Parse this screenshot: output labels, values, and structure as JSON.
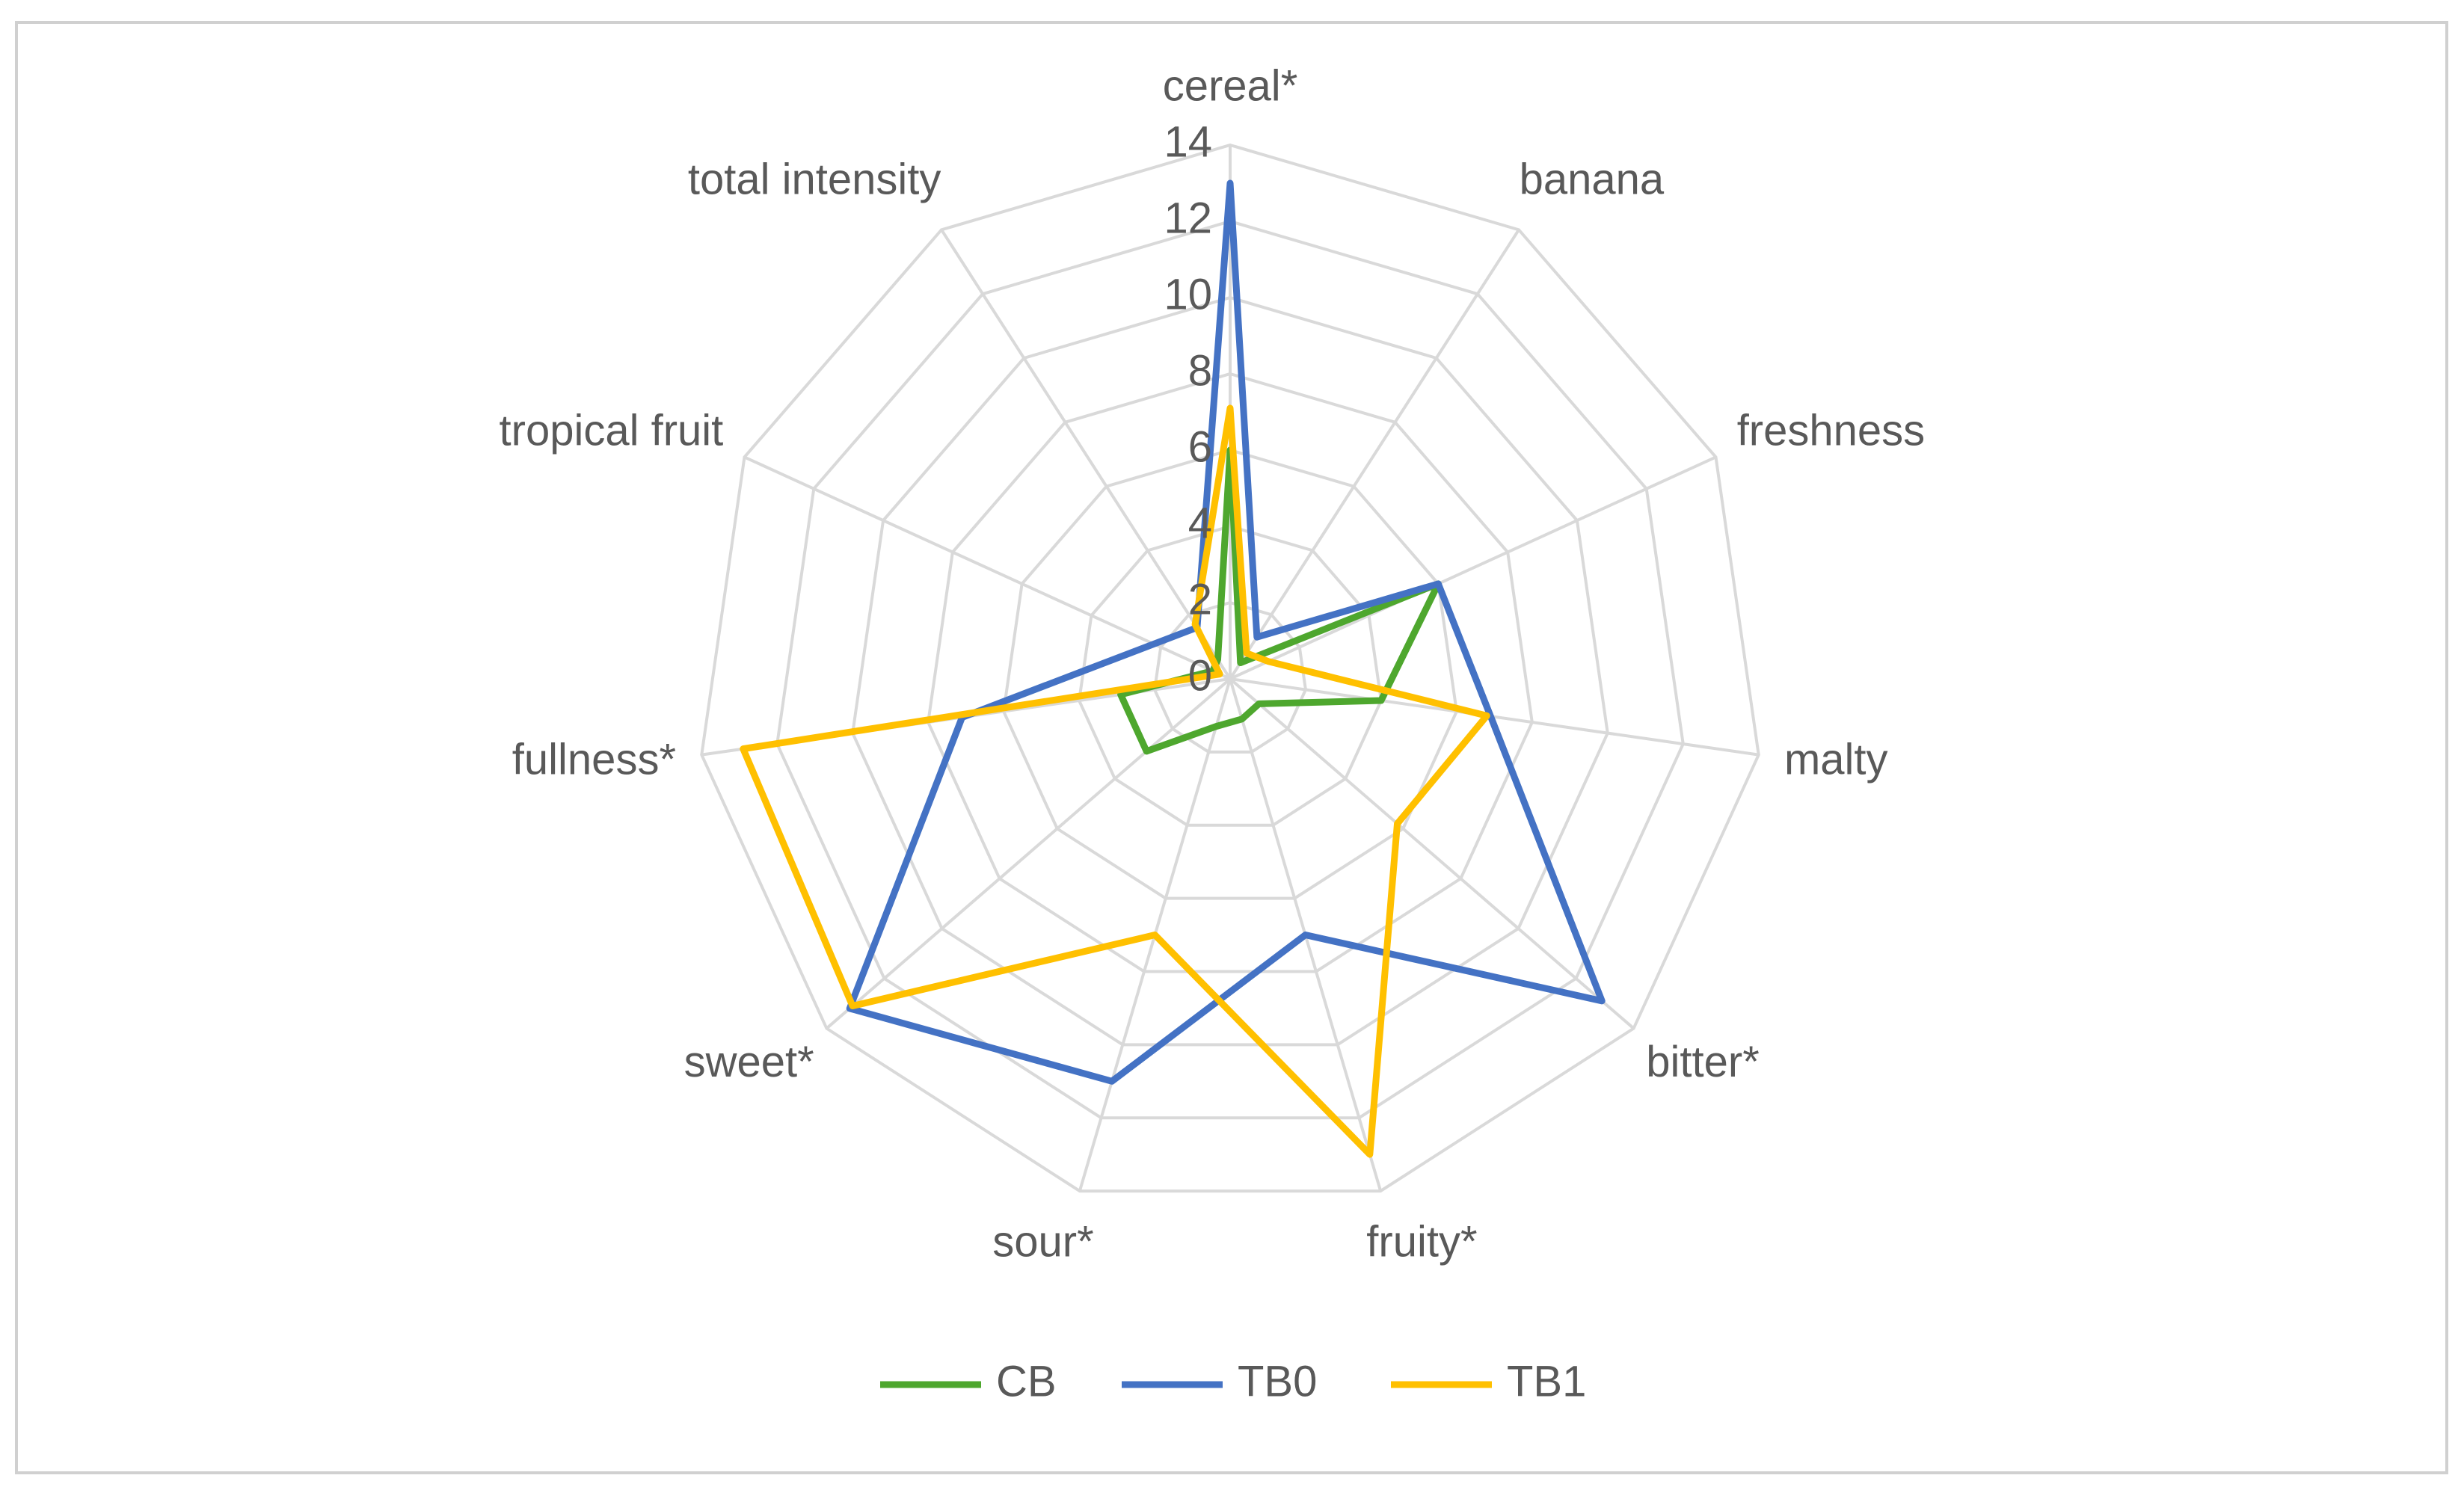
{
  "chart_data": {
    "type": "radar",
    "categories": [
      "cereal*",
      "banana",
      "freshness",
      "malty",
      "bitter*",
      "fruity*",
      "sour*",
      "sweet*",
      "fullness*",
      "tropical fruit",
      "total intensity"
    ],
    "series": [
      {
        "name": "CB",
        "color": "#4ea72e",
        "values": [
          6.0,
          0.5,
          6.0,
          4.0,
          1.0,
          1.1,
          1.3,
          2.9,
          2.9,
          0.5,
          0.6
        ]
      },
      {
        "name": "TB0",
        "color": "#4472c4",
        "values": [
          13.0,
          1.3,
          6.0,
          6.9,
          12.9,
          7.0,
          11.0,
          13.2,
          7.1,
          2.2,
          1.6
        ]
      },
      {
        "name": "TB1",
        "color": "#ffc000",
        "values": [
          7.1,
          0.8,
          1.1,
          6.8,
          5.8,
          13.0,
          7.0,
          13.1,
          12.9,
          0.3,
          1.7
        ]
      }
    ],
    "rlim": [
      0,
      14
    ],
    "rticks": [
      0,
      2,
      4,
      6,
      8,
      10,
      12,
      14
    ],
    "grid": true,
    "legend": "bottom"
  }
}
